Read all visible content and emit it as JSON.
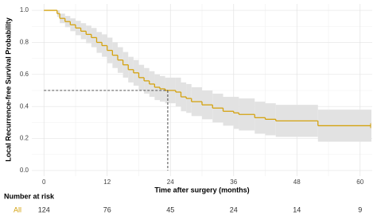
{
  "chart_data": {
    "type": "survival",
    "x_label": "Time after surgery (months)",
    "y_label": "Local Recurrence-free Survival Probability",
    "xlim": [
      -2.3,
      62.3
    ],
    "ylim": [
      -0.035,
      1.04
    ],
    "xticks": [
      0,
      12,
      24,
      36,
      48,
      60
    ],
    "yticks": [
      {
        "value": 0,
        "label": "0.0"
      },
      {
        "value": 0.2,
        "label": "0.2"
      },
      {
        "value": 0.4,
        "label": "0.4"
      },
      {
        "value": 0.6,
        "label": "0.6"
      },
      {
        "value": 0.8,
        "label": "0.8"
      },
      {
        "value": 1,
        "label": "1.0"
      }
    ],
    "grid": true,
    "x": [
      0,
      2.5,
      3,
      4,
      5,
      6,
      7,
      8,
      9,
      10,
      11,
      12,
      13,
      14,
      15,
      16,
      17,
      18,
      19,
      20,
      21,
      22,
      23,
      25,
      26,
      27,
      28,
      30,
      32,
      34,
      36,
      37,
      40,
      42,
      44,
      52,
      62
    ],
    "series": [
      {
        "name": "All",
        "color": "#d4a20f",
        "values": [
          1,
          0.98,
          0.95,
          0.93,
          0.91,
          0.89,
          0.87,
          0.85,
          0.83,
          0.8,
          0.78,
          0.75,
          0.72,
          0.69,
          0.66,
          0.63,
          0.61,
          0.58,
          0.56,
          0.54,
          0.52,
          0.51,
          0.5,
          0.49,
          0.46,
          0.45,
          0.43,
          0.41,
          0.39,
          0.37,
          0.36,
          0.35,
          0.33,
          0.32,
          0.31,
          0.28,
          0.28
        ],
        "upper": [
          1,
          1,
          0.98,
          0.965,
          0.95,
          0.935,
          0.92,
          0.905,
          0.89,
          0.865,
          0.85,
          0.83,
          0.8,
          0.77,
          0.74,
          0.71,
          0.69,
          0.66,
          0.64,
          0.62,
          0.6,
          0.59,
          0.58,
          0.58,
          0.55,
          0.54,
          0.52,
          0.5,
          0.48,
          0.46,
          0.46,
          0.45,
          0.43,
          0.42,
          0.41,
          0.38,
          0.38
        ],
        "lower": [
          1,
          0.96,
          0.92,
          0.895,
          0.87,
          0.845,
          0.82,
          0.795,
          0.77,
          0.735,
          0.71,
          0.67,
          0.64,
          0.61,
          0.58,
          0.55,
          0.53,
          0.5,
          0.48,
          0.46,
          0.44,
          0.43,
          0.42,
          0.4,
          0.37,
          0.36,
          0.34,
          0.32,
          0.3,
          0.28,
          0.26,
          0.25,
          0.23,
          0.22,
          0.21,
          0.18,
          0.18
        ]
      }
    ],
    "median_time": 23.5,
    "median_survival": 0.5,
    "risk_table": {
      "title": "Number at risk",
      "counts": [
        124,
        76,
        45,
        24,
        14,
        9
      ]
    }
  }
}
